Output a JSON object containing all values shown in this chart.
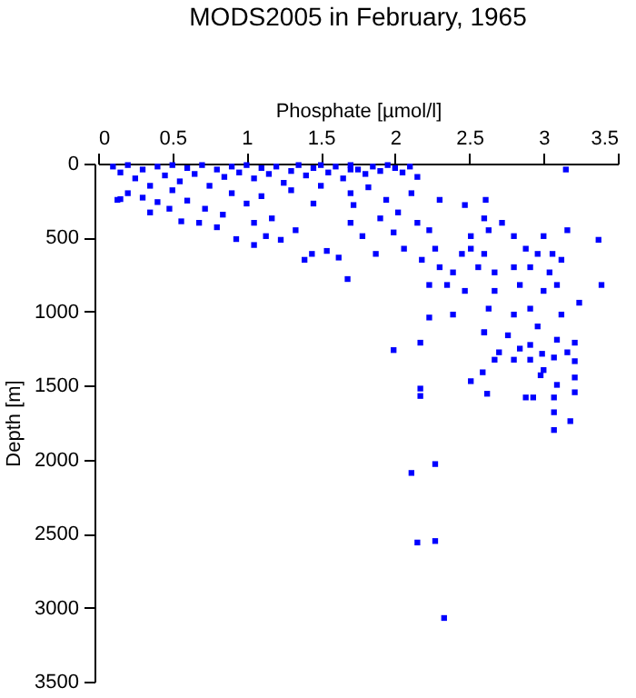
{
  "chart_data": {
    "type": "scatter",
    "title": "MODS2005 in February, 1965",
    "xlabel": "Phosphate [µmol/l]",
    "ylabel": "Depth [m]",
    "xlim": [
      0,
      3.5
    ],
    "xticks": [
      0,
      0.5,
      1,
      1.5,
      2,
      2.5,
      3,
      3.5
    ],
    "ylim": [
      3500,
      0
    ],
    "yticks": [
      0,
      500,
      1000,
      1500,
      2000,
      2500,
      3000,
      3500
    ],
    "marker": "square",
    "color": "#0000ff",
    "x": [
      0.1,
      0.15,
      0.2,
      0.25,
      0.3,
      0.35,
      0.4,
      0.45,
      0.5,
      0.55,
      0.6,
      0.65,
      0.7,
      0.75,
      0.8,
      0.85,
      0.9,
      0.95,
      1.0,
      1.05,
      1.1,
      1.15,
      1.2,
      1.25,
      1.3,
      1.35,
      1.4,
      1.45,
      1.5,
      1.55,
      1.6,
      1.65,
      1.7,
      1.75,
      1.8,
      1.85,
      1.9,
      1.95,
      2.0,
      2.05,
      2.1,
      2.15,
      0.48,
      0.56,
      0.68,
      0.8,
      0.93,
      1.05,
      1.13,
      1.23,
      1.44,
      1.54,
      1.62,
      1.68,
      1.39,
      1.05,
      1.17,
      1.33,
      1.45,
      1.7,
      1.72,
      0.35,
      0.13,
      0.72,
      0.84,
      0.2,
      0.3,
      0.5,
      0.6,
      0.9,
      1.1,
      1.3,
      1.5,
      1.7,
      0.4,
      0.15,
      1.0,
      1.7,
      1.82,
      1.94,
      1.9,
      2.02,
      2.15,
      2.23,
      2.06,
      2.18,
      2.3,
      1.87,
      1.78,
      2.39,
      2.23,
      2.23,
      2.39,
      2.47,
      2.3,
      2.47,
      2.6,
      2.51,
      2.63,
      2.72,
      2.8,
      2.88,
      2.96,
      2.91,
      3.04,
      3.09,
      3.0,
      3.12,
      3.16,
      3.37,
      3.39,
      3.24,
      3.12,
      2.91,
      2.8,
      2.67,
      2.63,
      2.6,
      2.76,
      2.96,
      3.09,
      3.15,
      2.61,
      2.51,
      2.56,
      2.67,
      2.8,
      2.84,
      2.6,
      3.0,
      3.06,
      2.11,
      1.99,
      2.27,
      2.45,
      2.35,
      1.99,
      2.17,
      2.6,
      2.51,
      2.62,
      2.59,
      2.88,
      2.93,
      2.98,
      3.0,
      3.09,
      3.07,
      3.07,
      3.07,
      3.18,
      3.21,
      3.21,
      3.21,
      3.21,
      3.16,
      3.07,
      2.91,
      2.8,
      2.67,
      2.7,
      2.84,
      2.99,
      2.91,
      2.17,
      2.17,
      2.27,
      2.11,
      2.15,
      2.27,
      2.33
    ],
    "values": [
      20,
      60,
      10,
      100,
      40,
      150,
      20,
      80,
      10,
      120,
      30,
      70,
      10,
      150,
      40,
      90,
      20,
      60,
      10,
      100,
      30,
      70,
      20,
      130,
      50,
      10,
      80,
      30,
      10,
      60,
      20,
      100,
      10,
      40,
      70,
      20,
      50,
      10,
      30,
      60,
      20,
      90,
      305,
      390,
      400,
      430,
      510,
      550,
      490,
      515,
      610,
      590,
      635,
      780,
      650,
      400,
      370,
      450,
      270,
      400,
      280,
      330,
      245,
      305,
      345,
      200,
      230,
      180,
      250,
      200,
      220,
      180,
      150,
      200,
      260,
      240,
      270,
      40,
      160,
      245,
      370,
      330,
      400,
      450,
      575,
      650,
      700,
      610,
      490,
      735,
      820,
      1040,
      1020,
      860,
      245,
      280,
      370,
      490,
      450,
      400,
      490,
      575,
      610,
      700,
      735,
      820,
      860,
      650,
      450,
      515,
      820,
      940,
      1020,
      980,
      1020,
      860,
      980,
      1140,
      1160,
      1100,
      1190,
      40,
      245,
      575,
      700,
      735,
      700,
      820,
      610,
      490,
      610,
      200,
      465,
      575,
      610,
      820,
      1260,
      1210,
      1140,
      1470,
      1555,
      1410,
      1580,
      1580,
      1430,
      1395,
      1495,
      1580,
      1680,
      1800,
      1740,
      1545,
      1445,
      1335,
      1210,
      1275,
      1310,
      1325,
      1325,
      1325,
      1275,
      1250,
      1285,
      1225,
      1520,
      1570,
      2030,
      2090,
      2560,
      2550,
      3070
    ]
  }
}
